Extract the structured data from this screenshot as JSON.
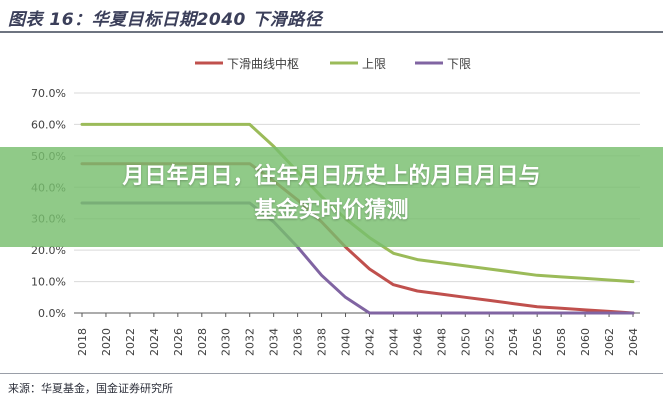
{
  "header": {
    "title": "图表 16：华夏目标日期2040 下滑路径"
  },
  "banner": {
    "line1": "月日年月日，往年月日历史上的月日月日与",
    "line2": "基金实时价猜测"
  },
  "footer": {
    "source": "来源：华夏基金，国金证券研究所"
  },
  "colors": {
    "mid": "#c0504d",
    "upper": "#9bbb59",
    "lower": "#8064a2",
    "grid": "#d9d9d9",
    "axis": "#595959"
  },
  "chart_data": {
    "type": "line",
    "title": "",
    "xlabel": "",
    "ylabel": "",
    "ylim": [
      0,
      70
    ],
    "yticks": [
      "0.0%",
      "10.0%",
      "20.0%",
      "30.0%",
      "40.0%",
      "50.0%",
      "60.0%",
      "70.0%"
    ],
    "grid": "horizontal",
    "legend_position": "top-right",
    "categories": [
      "2018",
      "2020",
      "2022",
      "2024",
      "2026",
      "2028",
      "2030",
      "2032",
      "2034",
      "2036",
      "2038",
      "2040",
      "2042",
      "2044",
      "2046",
      "2048",
      "2050",
      "2052",
      "2054",
      "2056",
      "2058",
      "2060",
      "2062",
      "2064"
    ],
    "series": [
      {
        "name": "下滑曲线中枢",
        "color_key": "mid",
        "values": [
          47.5,
          47.5,
          47.5,
          47.5,
          47.5,
          47.5,
          47.5,
          47.5,
          42,
          36,
          29,
          21,
          14,
          9,
          7,
          6,
          5,
          4,
          3,
          2,
          1.5,
          1,
          0.5,
          0
        ]
      },
      {
        "name": "上限",
        "color_key": "upper",
        "values": [
          60,
          60,
          60,
          60,
          60,
          60,
          60,
          60,
          53,
          45,
          37,
          30,
          24,
          19,
          17,
          16,
          15,
          14,
          13,
          12,
          11.5,
          11,
          10.5,
          10
        ]
      },
      {
        "name": "下限",
        "color_key": "lower",
        "values": [
          35,
          35,
          35,
          35,
          35,
          35,
          35,
          35,
          29,
          21,
          12,
          5,
          0,
          0,
          0,
          0,
          0,
          0,
          0,
          0,
          0,
          0,
          0,
          0
        ]
      }
    ]
  }
}
